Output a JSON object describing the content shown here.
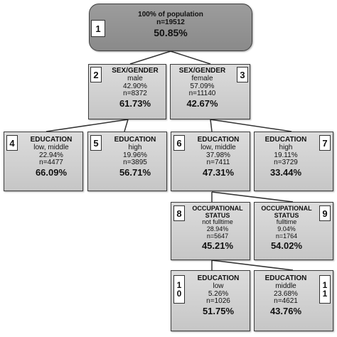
{
  "nodes": {
    "n1": {
      "id": "1",
      "title": "100% of population",
      "n": "n=19512",
      "value": "50.85%"
    },
    "n2": {
      "id": "2",
      "title": "SEX/GENDER",
      "sub": "male",
      "pct": "42.90%",
      "n": "n=8372",
      "value": "61.73%"
    },
    "n3": {
      "id": "3",
      "title": "SEX/GENDER",
      "sub": "female",
      "pct": "57.09%",
      "n": "n=11140",
      "value": "42.67%"
    },
    "n4": {
      "id": "4",
      "title": "EDUCATION",
      "sub": "low, middle",
      "pct": "22.94%",
      "n": "n=4477",
      "value": "66.09%"
    },
    "n5": {
      "id": "5",
      "title": "EDUCATION",
      "sub": "high",
      "pct": "19.96%",
      "n": "n=3895",
      "value": "56.71%"
    },
    "n6": {
      "id": "6",
      "title": "EDUCATION",
      "sub": "low, middle",
      "pct": "37.98%",
      "n": "n=7411",
      "value": "47.31%"
    },
    "n7": {
      "id": "7",
      "title": "EDUCATION",
      "sub": "high",
      "pct": "19.11%",
      "n": "n=3729",
      "value": "33.44%"
    },
    "n8": {
      "id": "8",
      "title": "OCCUPATIONAL STATUS",
      "sub": "not fulltime",
      "pct": "28.94%",
      "n": "n=5647",
      "value": "45.21%"
    },
    "n9": {
      "id": "9",
      "title": "OCCUPATIONAL STATUS",
      "sub": "fulltime",
      "pct": "9.04%",
      "n": "n=1764",
      "value": "54.02%"
    },
    "n10": {
      "id_top": "1",
      "id_bottom": "0",
      "title": "EDUCATION",
      "sub": "low",
      "pct": "5.26%",
      "n": "n=1026",
      "value": "51.75%"
    },
    "n11": {
      "id_top": "1",
      "id_bottom": "1",
      "title": "EDUCATION",
      "sub": "middle",
      "pct": "23.68%",
      "n": "n=4621",
      "value": "43.76%"
    }
  }
}
